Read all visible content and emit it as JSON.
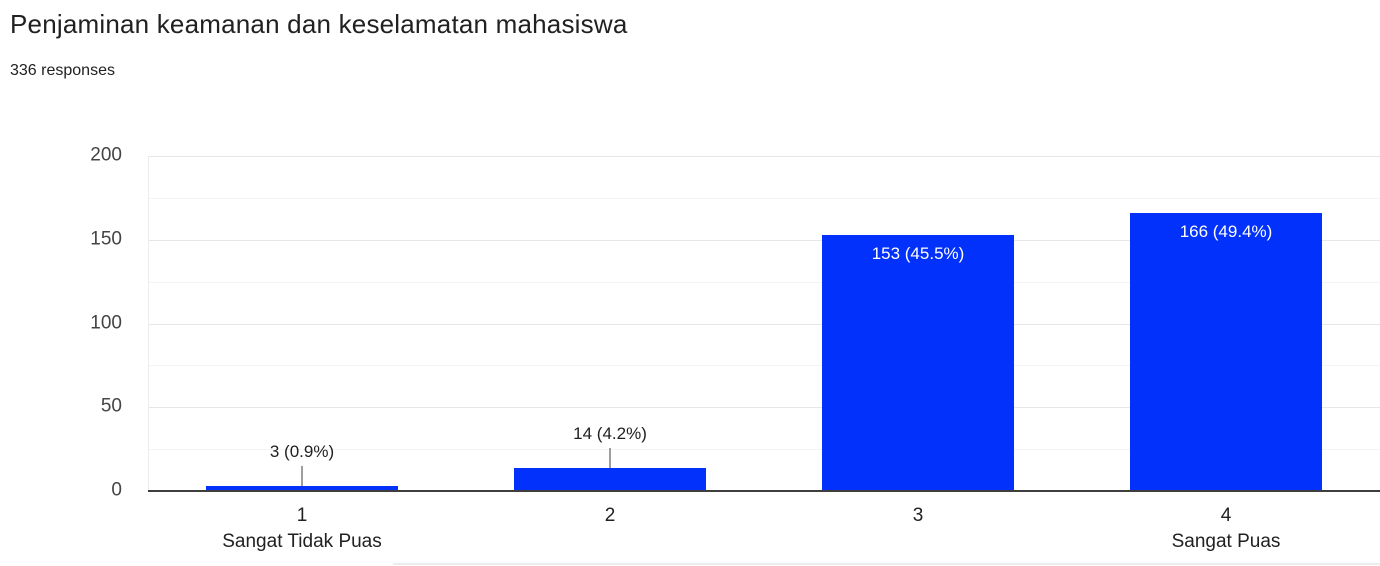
{
  "header": {
    "title": "Penjaminan keamanan dan keselamatan mahasiswa",
    "responses_label": "336 responses"
  },
  "chart_data": {
    "type": "bar",
    "title": "Penjaminan keamanan dan keselamatan mahasiswa",
    "subtitle": "336 responses",
    "categories": [
      "1",
      "2",
      "3",
      "4"
    ],
    "category_sublabels": [
      "Sangat Tidak Puas",
      "",
      "",
      "Sangat Puas"
    ],
    "values": [
      3,
      14,
      153,
      166
    ],
    "value_labels": [
      "3 (0.9%)",
      "14 (4.2%)",
      "153 (45.5%)",
      "166 (49.4%)"
    ],
    "xlabel": "",
    "ylabel": "",
    "ylim": [
      0,
      200
    ],
    "yticks": [
      0,
      50,
      100,
      150,
      200
    ],
    "minor_grid_step": 25,
    "grid": true,
    "legend": "none",
    "colors": {
      "bar": "#0331fc",
      "label_inside": "#ffffff",
      "label_outside": "#212121",
      "leader": "#9e9e9e",
      "axis_text": "#444444",
      "category_text": "#212121"
    }
  }
}
